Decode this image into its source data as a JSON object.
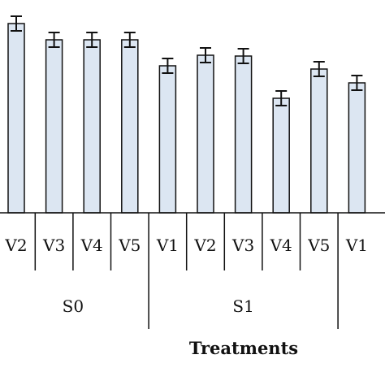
{
  "chart_data": {
    "type": "bar",
    "title": "",
    "xlabel": "Treatments",
    "ylabel": "",
    "grid": false,
    "legend": "none",
    "colors": {
      "bar_fill": "#dce6f2",
      "bar_stroke": "#111111",
      "axis": "#111111"
    },
    "groups": [
      {
        "label": "S0",
        "categories": [
          "V2",
          "V3",
          "V4",
          "V5"
        ]
      },
      {
        "label": "S1",
        "categories": [
          "V1",
          "V2",
          "V3",
          "V4",
          "V5"
        ]
      },
      {
        "label": "",
        "categories": [
          "V1"
        ]
      }
    ],
    "categories": [
      "V2",
      "V3",
      "V4",
      "V5",
      "V1",
      "V2",
      "V3",
      "V4",
      "V5",
      "V1"
    ],
    "values": [
      233,
      213,
      213,
      213,
      181,
      194,
      193,
      141,
      177,
      160
    ],
    "errors": [
      9,
      9,
      9,
      9,
      9,
      9,
      9,
      9,
      9,
      9
    ],
    "ylim": [
      0,
      262
    ]
  }
}
